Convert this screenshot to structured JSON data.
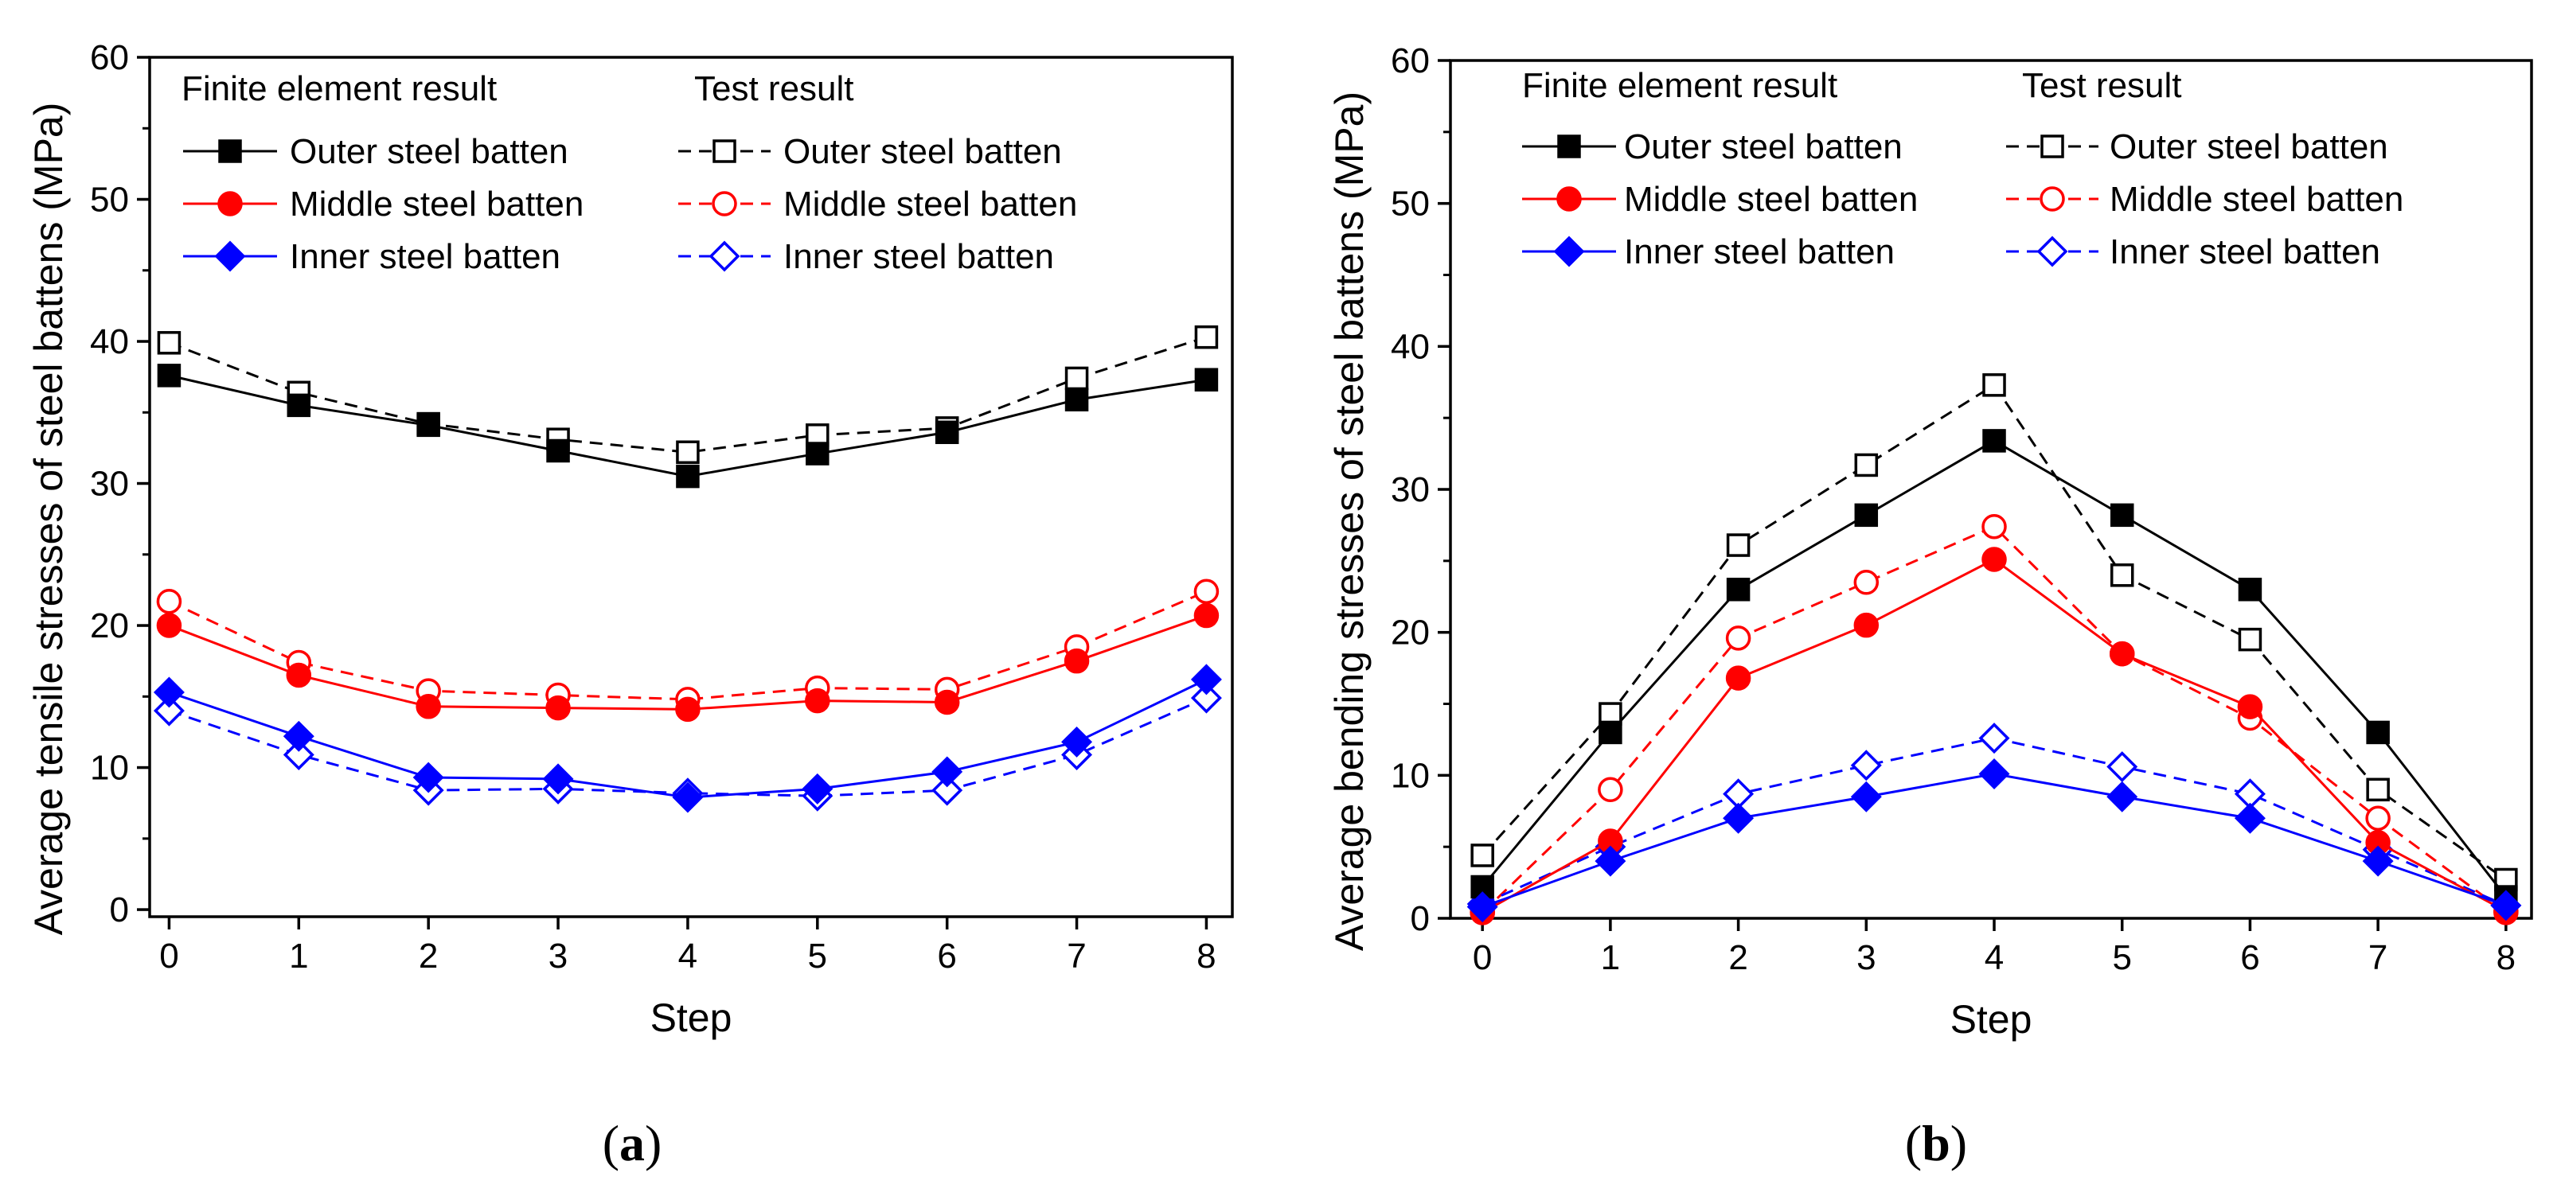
{
  "chart_data": [
    {
      "type": "line",
      "panel": "a",
      "caption_open": "(",
      "caption_letter": "a",
      "caption_close": ")",
      "xlabel": "Step",
      "ylabel": "Average tensile stresses of steel battens (MPa)",
      "x": [
        0,
        1,
        2,
        3,
        4,
        5,
        6,
        7,
        8
      ],
      "xlim": [
        -0.15,
        8.2
      ],
      "ylim": [
        -0.5,
        60
      ],
      "yticks": [
        0,
        10,
        20,
        30,
        40,
        50,
        60
      ],
      "legend_headers": [
        "Finite element result",
        "Test result"
      ],
      "series": [
        {
          "name": "Outer steel batten",
          "group": "Finite element result",
          "color": "#000000",
          "marker": "square",
          "filled": true,
          "dashed": false,
          "values": [
            37.6,
            35.5,
            34.1,
            32.3,
            30.5,
            32.1,
            33.6,
            35.9,
            37.3
          ]
        },
        {
          "name": "Middle steel batten",
          "group": "Finite element result",
          "color": "#ff0000",
          "marker": "circle",
          "filled": true,
          "dashed": false,
          "values": [
            20.0,
            16.5,
            14.3,
            14.2,
            14.1,
            14.7,
            14.6,
            17.5,
            20.7
          ]
        },
        {
          "name": "Inner steel batten",
          "group": "Finite element result",
          "color": "#0000ff",
          "marker": "diamond",
          "filled": true,
          "dashed": false,
          "values": [
            15.3,
            12.2,
            9.3,
            9.2,
            7.9,
            8.5,
            9.7,
            11.8,
            16.2
          ]
        },
        {
          "name": "Outer steel batten",
          "group": "Test result",
          "color": "#000000",
          "marker": "square",
          "filled": false,
          "dashed": true,
          "values": [
            39.9,
            36.4,
            34.2,
            33.1,
            32.2,
            33.4,
            33.9,
            37.4,
            40.3
          ]
        },
        {
          "name": "Middle steel batten",
          "group": "Test result",
          "color": "#ff0000",
          "marker": "circle",
          "filled": false,
          "dashed": true,
          "values": [
            21.7,
            17.4,
            15.4,
            15.1,
            14.8,
            15.6,
            15.5,
            18.5,
            22.4
          ]
        },
        {
          "name": "Inner steel batten",
          "group": "Test result",
          "color": "#0000ff",
          "marker": "diamond",
          "filled": false,
          "dashed": true,
          "values": [
            14.0,
            10.9,
            8.4,
            8.5,
            8.2,
            8.0,
            8.4,
            10.9,
            14.9
          ]
        }
      ]
    },
    {
      "type": "line",
      "panel": "b",
      "caption_open": "(",
      "caption_letter": "b",
      "caption_close": ")",
      "xlabel": "Step",
      "ylabel": "Average bending stresses of steel battens (MPa)",
      "x": [
        0,
        1,
        2,
        3,
        4,
        5,
        6,
        7,
        8
      ],
      "xlim": [
        -0.25,
        8.2
      ],
      "ylim": [
        0,
        60
      ],
      "yticks": [
        0,
        10,
        20,
        30,
        40,
        50,
        60
      ],
      "legend_headers": [
        "Finite element result",
        "Test result"
      ],
      "series": [
        {
          "name": "Outer steel batten",
          "group": "Finite element result",
          "color": "#000000",
          "marker": "square",
          "filled": true,
          "dashed": false,
          "values": [
            2.2,
            13.0,
            23.0,
            28.2,
            33.4,
            28.2,
            23.0,
            13.0,
            1.5
          ]
        },
        {
          "name": "Middle steel batten",
          "group": "Finite element result",
          "color": "#ff0000",
          "marker": "circle",
          "filled": true,
          "dashed": false,
          "values": [
            0.4,
            5.4,
            16.8,
            20.5,
            25.1,
            18.5,
            14.8,
            5.3,
            0.5
          ]
        },
        {
          "name": "Inner steel batten",
          "group": "Finite element result",
          "color": "#0000ff",
          "marker": "diamond",
          "filled": true,
          "dashed": false,
          "values": [
            0.8,
            4.0,
            7.0,
            8.5,
            10.1,
            8.5,
            7.0,
            4.0,
            0.9
          ]
        },
        {
          "name": "Outer steel batten",
          "group": "Test result",
          "color": "#000000",
          "marker": "square",
          "filled": false,
          "dashed": true,
          "values": [
            4.4,
            14.3,
            26.1,
            31.7,
            37.3,
            24.0,
            19.5,
            9.0,
            2.7
          ]
        },
        {
          "name": "Middle steel batten",
          "group": "Test result",
          "color": "#ff0000",
          "marker": "circle",
          "filled": false,
          "dashed": true,
          "values": [
            0.4,
            9.0,
            19.6,
            23.5,
            27.4,
            18.5,
            14.0,
            7.0,
            0.4
          ]
        },
        {
          "name": "Inner steel batten",
          "group": "Test result",
          "color": "#0000ff",
          "marker": "diamond",
          "filled": false,
          "dashed": true,
          "values": [
            1.0,
            5.0,
            8.7,
            10.7,
            12.6,
            10.6,
            8.7,
            4.8,
            0.9
          ]
        }
      ]
    }
  ]
}
